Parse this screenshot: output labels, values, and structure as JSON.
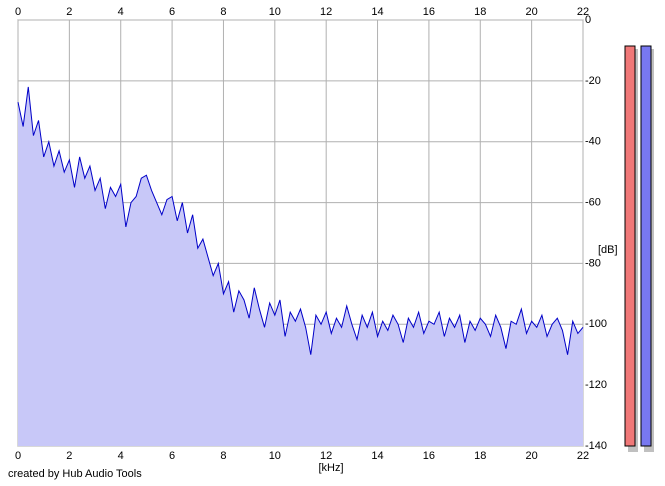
{
  "chart_data": {
    "type": "line",
    "x_label": "[kHz]",
    "y_label": "[dB]",
    "credit": "created by Hub Audio Tools",
    "xlim": [
      0,
      22
    ],
    "xticks": [
      0,
      2,
      4,
      6,
      8,
      10,
      12,
      14,
      16,
      18,
      20,
      22
    ],
    "ylim": [
      -140,
      0
    ],
    "yticks": [
      0,
      -20,
      -40,
      -60,
      -80,
      -100,
      -120,
      -140
    ],
    "grid": true,
    "fill": "#c8c8f8",
    "x": [
      0,
      0.2,
      0.4,
      0.6,
      0.8,
      1,
      1.2,
      1.4,
      1.6,
      1.8,
      2,
      2.2,
      2.4,
      2.6,
      2.8,
      3,
      3.2,
      3.4,
      3.6,
      3.8,
      4,
      4.2,
      4.4,
      4.6,
      4.8,
      5,
      5.2,
      5.4,
      5.6,
      5.8,
      6,
      6.2,
      6.4,
      6.6,
      6.8,
      7,
      7.2,
      7.4,
      7.6,
      7.8,
      8,
      8.2,
      8.4,
      8.6,
      8.8,
      9,
      9.2,
      9.4,
      9.6,
      9.8,
      10,
      10.2,
      10.4,
      10.6,
      10.8,
      11,
      11.2,
      11.4,
      11.6,
      11.8,
      12,
      12.2,
      12.4,
      12.6,
      12.8,
      13,
      13.2,
      13.4,
      13.6,
      13.8,
      14,
      14.2,
      14.4,
      14.6,
      14.8,
      15,
      15.2,
      15.4,
      15.6,
      15.8,
      16,
      16.2,
      16.4,
      16.6,
      16.8,
      17,
      17.2,
      17.4,
      17.6,
      17.8,
      18,
      18.2,
      18.4,
      18.6,
      18.8,
      19,
      19.2,
      19.4,
      19.6,
      19.8,
      20,
      20.2,
      20.4,
      20.6,
      20.8,
      21,
      21.2,
      21.4,
      21.6,
      21.8,
      22
    ],
    "series": [
      {
        "color": "#0000c8",
        "values": [
          -27,
          -35,
          -22,
          -38,
          -33,
          -45,
          -40,
          -48,
          -43,
          -50,
          -46,
          -55,
          -45,
          -52,
          -48,
          -56,
          -52,
          -62,
          -55,
          -58,
          -54,
          -68,
          -60,
          -58,
          -52,
          -51,
          -56,
          -60,
          -64,
          -59,
          -58,
          -66,
          -60,
          -70,
          -64,
          -75,
          -72,
          -78,
          -84,
          -80,
          -90,
          -86,
          -96,
          -89,
          -92,
          -98,
          -88,
          -95,
          -101,
          -93,
          -97,
          -92,
          -104,
          -96,
          -99,
          -95,
          -101,
          -110,
          -97,
          -100,
          -96,
          -103,
          -98,
          -101,
          -94,
          -100,
          -105,
          -97,
          -101,
          -96,
          -104,
          -99,
          -102,
          -97,
          -100,
          -106,
          -98,
          -101,
          -96,
          -103,
          -99,
          -100,
          -96,
          -104,
          -98,
          -101,
          -97,
          -106,
          -99,
          -102,
          -98,
          -100,
          -104,
          -97,
          -101,
          -108,
          -99,
          -100,
          -95,
          -103,
          -99,
          -101,
          -97,
          -104,
          -100,
          -98,
          -102,
          -110,
          -99,
          -103,
          -101
        ]
      }
    ]
  }
}
